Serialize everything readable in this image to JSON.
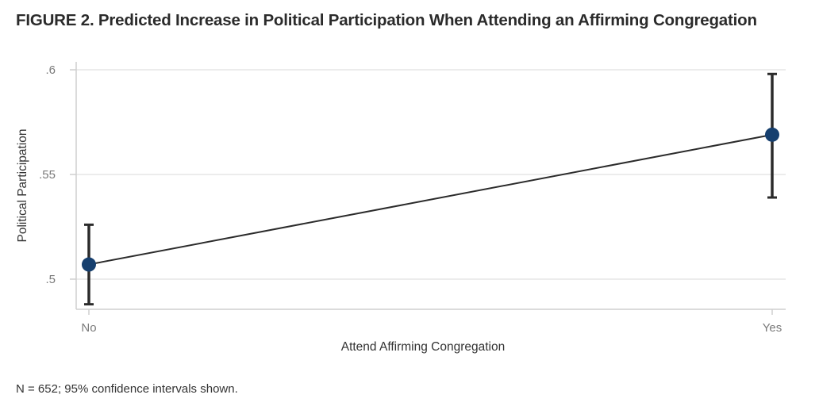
{
  "title": "FIGURE 2. Predicted Increase in Political Participation When Attending an Affirming Congregation",
  "note": "N = 652; 95% confidence intervals shown.",
  "chart_data": {
    "type": "line",
    "xlabel": "Attend Affirming Congregation",
    "ylabel": "Political Participation",
    "categories": [
      "No",
      "Yes"
    ],
    "ylim": [
      0.49,
      0.605
    ],
    "yticks": [
      {
        "value": 0.5,
        "label": ".5"
      },
      {
        "value": 0.55,
        "label": ".55"
      },
      {
        "value": 0.6,
        "label": ".6"
      }
    ],
    "grid": true,
    "series": [
      {
        "values": [
          0.507,
          0.569
        ],
        "ci_low": [
          0.488,
          0.539
        ],
        "ci_high": [
          0.526,
          0.598
        ]
      }
    ],
    "colors": {
      "marker": "#163f6e",
      "line": "#2b2b2b",
      "grid": "#e6e6e6",
      "axis": "#cfcfcf"
    }
  }
}
